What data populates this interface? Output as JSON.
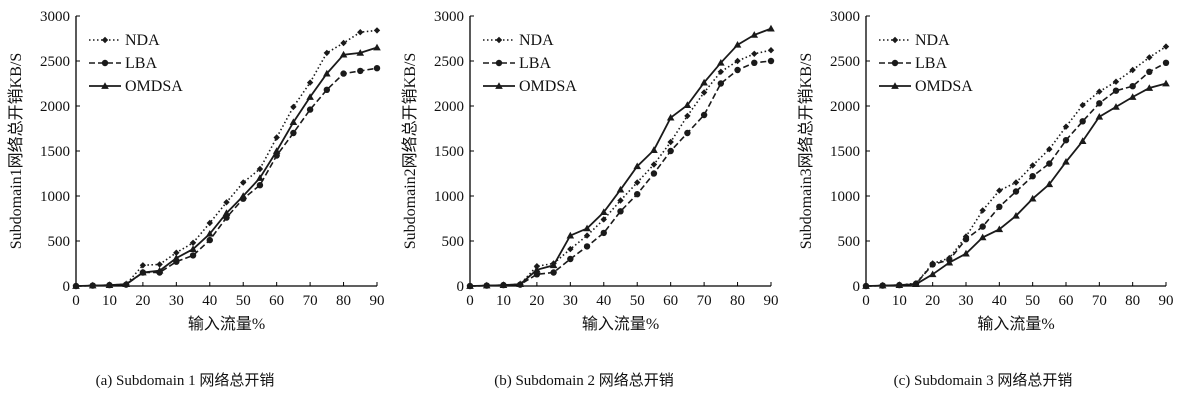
{
  "colors": {
    "line": "#1a1a1a",
    "axis": "#000000",
    "background": "#ffffff"
  },
  "chart_data": [
    {
      "type": "line",
      "caption": "(a) Subdomain 1 网络总开销",
      "xlabel": "输入流量%",
      "ylabel": "Subdomain1网络总开销KB/S",
      "xlim": [
        0,
        90
      ],
      "ylim": [
        0,
        3000
      ],
      "xticks": [
        "0",
        "10",
        "20",
        "30",
        "40",
        "50",
        "60",
        "70",
        "80",
        "90"
      ],
      "yticks": [
        "0",
        "500",
        "1000",
        "1500",
        "2000",
        "2500",
        "3000"
      ],
      "grid": false,
      "legend": "top-left",
      "x": [
        0,
        5,
        10,
        15,
        20,
        25,
        30,
        35,
        40,
        45,
        50,
        55,
        60,
        65,
        70,
        75,
        80,
        85,
        90
      ],
      "series": [
        {
          "name": "NDA",
          "style": "dotted",
          "marker": "diamond",
          "values": [
            0,
            5,
            10,
            20,
            230,
            240,
            370,
            480,
            700,
            930,
            1150,
            1300,
            1650,
            1990,
            2260,
            2590,
            2700,
            2820,
            2840
          ]
        },
        {
          "name": "LBA",
          "style": "dashed",
          "marker": "circle",
          "values": [
            0,
            5,
            10,
            15,
            150,
            150,
            270,
            340,
            510,
            760,
            970,
            1120,
            1450,
            1700,
            1960,
            2180,
            2360,
            2390,
            2420
          ]
        },
        {
          "name": "OMDSA",
          "style": "solid",
          "marker": "triangle",
          "values": [
            0,
            5,
            10,
            20,
            150,
            170,
            310,
            410,
            580,
            810,
            1000,
            1200,
            1500,
            1820,
            2100,
            2360,
            2570,
            2590,
            2650
          ]
        }
      ]
    },
    {
      "type": "line",
      "caption": "(b) Subdomain 2 网络总开销",
      "xlabel": "输入流量%",
      "ylabel": "Subdomain2网络总开销KB/S",
      "xlim": [
        0,
        90
      ],
      "ylim": [
        0,
        3000
      ],
      "xticks": [
        "0",
        "10",
        "20",
        "30",
        "40",
        "50",
        "60",
        "70",
        "80",
        "90"
      ],
      "yticks": [
        "0",
        "500",
        "1000",
        "1500",
        "2000",
        "2500",
        "3000"
      ],
      "grid": false,
      "legend": "top-left",
      "x": [
        0,
        5,
        10,
        15,
        20,
        25,
        30,
        35,
        40,
        45,
        50,
        55,
        60,
        65,
        70,
        75,
        80,
        85,
        90
      ],
      "series": [
        {
          "name": "NDA",
          "style": "dotted",
          "marker": "diamond",
          "values": [
            0,
            5,
            10,
            20,
            220,
            250,
            410,
            560,
            740,
            950,
            1150,
            1350,
            1600,
            1890,
            2150,
            2380,
            2500,
            2580,
            2620
          ]
        },
        {
          "name": "LBA",
          "style": "dashed",
          "marker": "circle",
          "values": [
            0,
            5,
            10,
            15,
            130,
            150,
            300,
            440,
            590,
            830,
            1020,
            1250,
            1500,
            1700,
            1900,
            2250,
            2400,
            2480,
            2500
          ]
        },
        {
          "name": "OMDSA",
          "style": "solid",
          "marker": "triangle",
          "values": [
            0,
            5,
            10,
            20,
            180,
            230,
            560,
            640,
            820,
            1070,
            1330,
            1510,
            1870,
            2010,
            2260,
            2480,
            2680,
            2790,
            2860
          ]
        }
      ]
    },
    {
      "type": "line",
      "caption": "(c) Subdomain 3 网络总开销",
      "xlabel": "输入流量%",
      "ylabel": "Subdomain3网络总开销KB/S",
      "xlim": [
        0,
        90
      ],
      "ylim": [
        0,
        3000
      ],
      "xticks": [
        "0",
        "10",
        "20",
        "30",
        "40",
        "50",
        "60",
        "70",
        "80",
        "90"
      ],
      "yticks": [
        "0",
        "500",
        "1000",
        "1500",
        "2000",
        "2500",
        "3000"
      ],
      "grid": false,
      "legend": "top-left",
      "x": [
        0,
        5,
        10,
        15,
        20,
        25,
        30,
        35,
        40,
        45,
        50,
        55,
        60,
        65,
        70,
        75,
        80,
        85,
        90
      ],
      "series": [
        {
          "name": "NDA",
          "style": "dotted",
          "marker": "diamond",
          "values": [
            0,
            5,
            10,
            30,
            250,
            310,
            550,
            840,
            1060,
            1150,
            1340,
            1520,
            1770,
            2010,
            2160,
            2270,
            2400,
            2540,
            2660
          ]
        },
        {
          "name": "LBA",
          "style": "dashed",
          "marker": "circle",
          "values": [
            0,
            5,
            10,
            25,
            240,
            290,
            520,
            660,
            880,
            1050,
            1220,
            1360,
            1620,
            1830,
            2030,
            2170,
            2220,
            2380,
            2480
          ]
        },
        {
          "name": "OMDSA",
          "style": "solid",
          "marker": "triangle",
          "values": [
            0,
            5,
            10,
            20,
            130,
            260,
            360,
            540,
            630,
            780,
            970,
            1130,
            1380,
            1610,
            1880,
            1990,
            2100,
            2200,
            2250
          ]
        }
      ]
    }
  ]
}
